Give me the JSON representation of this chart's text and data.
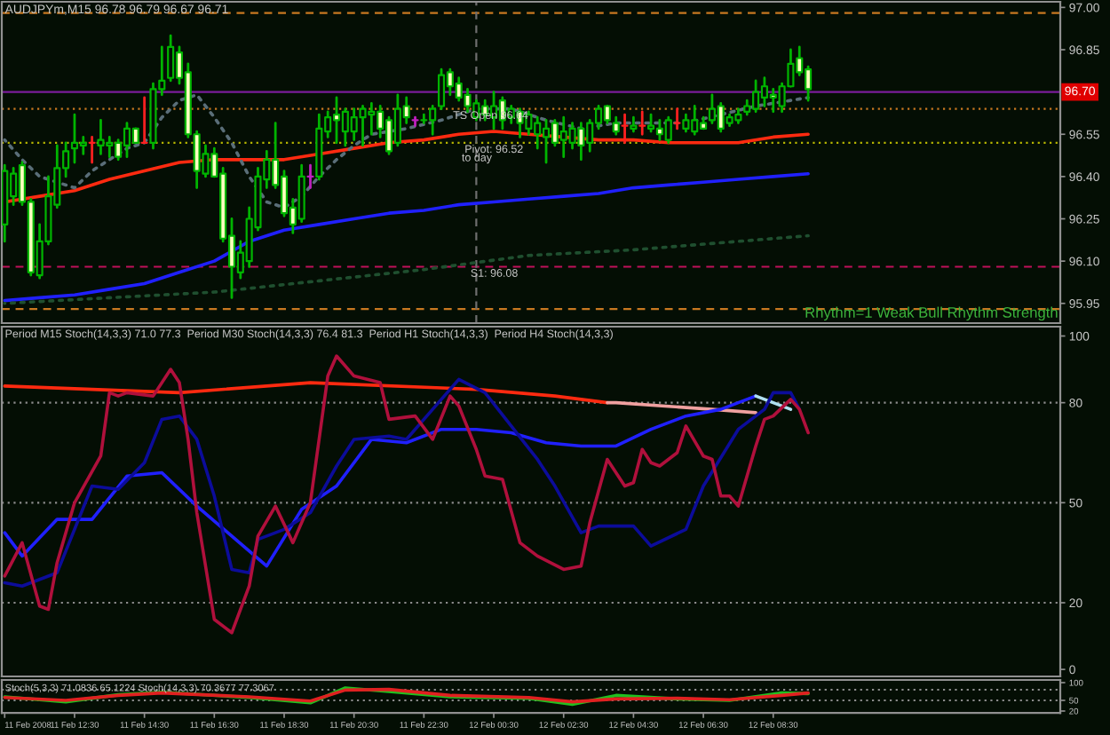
{
  "chart_data": [
    {
      "type": "candlestick",
      "title": "AUDJPYm,M15 96.78 96.79 96.67 96.71",
      "xlim": [
        "2008-02-11T10:25",
        "2008-02-12T16:43"
      ],
      "ylim": [
        95.88,
        97.02
      ],
      "tick_labels": "y",
      "yticks": [
        {
          "value": 97,
          "label": "97.00"
        },
        96.85,
        96.55,
        {
          "value": 96.4,
          "label": "96.40"
        },
        96.25,
        {
          "value": 96.1,
          "label": "96.10"
        },
        95.95
      ],
      "series": [
        {
          "color": "#00b400",
          "x": [
            "2008-02-11T10:30",
            "2008-02-11T10:45",
            "2008-02-11T11:00",
            "2008-02-11T11:15",
            "2008-02-11T11:30",
            "2008-02-11T11:45",
            "2008-02-11T12:00",
            "2008-02-11T12:15",
            "2008-02-11T12:30",
            "2008-02-11T12:45",
            "2008-02-11T13:00",
            "2008-02-11T13:15",
            "2008-02-11T13:30",
            "2008-02-11T13:45",
            "2008-02-11T14:00",
            "2008-02-11T14:15",
            "2008-02-11T14:30",
            "2008-02-11T14:45",
            "2008-02-11T15:00",
            "2008-02-11T15:15",
            "2008-02-11T15:30",
            "2008-02-11T15:45",
            "2008-02-11T16:00",
            "2008-02-11T16:15",
            "2008-02-11T16:30",
            "2008-02-11T16:45",
            "2008-02-11T17:00",
            "2008-02-11T17:15",
            "2008-02-11T17:30",
            "2008-02-11T17:45",
            "2008-02-11T18:00",
            "2008-02-11T18:15",
            "2008-02-11T18:30",
            "2008-02-11T18:45",
            "2008-02-11T19:00",
            "2008-02-11T19:15",
            "2008-02-11T19:30",
            "2008-02-11T19:45",
            "2008-02-11T20:00",
            "2008-02-11T20:15",
            "2008-02-11T20:30",
            "2008-02-11T20:45",
            "2008-02-11T21:00",
            "2008-02-11T21:15",
            "2008-02-11T21:30",
            "2008-02-11T21:45",
            "2008-02-11T22:00",
            "2008-02-11T22:15",
            "2008-02-11T22:30",
            "2008-02-11T22:45",
            "2008-02-11T23:00",
            "2008-02-11T23:15",
            "2008-02-11T23:30",
            "2008-02-11T23:45",
            "2008-02-12T00:00",
            "2008-02-12T00:15",
            "2008-02-12T00:30",
            "2008-02-12T00:45",
            "2008-02-12T01:00",
            "2008-02-12T01:15",
            "2008-02-12T01:30",
            "2008-02-12T01:45",
            "2008-02-12T02:00",
            "2008-02-12T02:15",
            "2008-02-12T02:30",
            "2008-02-12T02:45",
            "2008-02-12T03:00",
            "2008-02-12T03:15",
            "2008-02-12T03:30",
            "2008-02-12T03:45",
            "2008-02-12T04:00",
            "2008-02-12T04:15",
            "2008-02-12T04:30",
            "2008-02-12T04:45",
            "2008-02-12T05:00",
            "2008-02-12T05:15",
            "2008-02-12T05:30",
            "2008-02-12T05:45",
            "2008-02-12T06:00",
            "2008-02-12T06:15",
            "2008-02-12T06:30",
            "2008-02-12T06:45",
            "2008-02-12T07:00",
            "2008-02-12T07:15",
            "2008-02-12T07:30",
            "2008-02-12T07:45",
            "2008-02-12T08:00",
            "2008-02-12T08:15",
            "2008-02-12T08:30",
            "2008-02-12T08:45",
            "2008-02-12T09:00",
            "2008-02-12T09:15",
            "2008-02-12T09:30"
          ],
          "ohlc": [
            [
              96.23,
              96.44,
              96.17,
              96.42
            ],
            [
              96.33,
              96.43,
              96.3,
              96.41
            ],
            [
              96.44,
              96.45,
              96.3,
              96.31
            ],
            [
              96.31,
              96.32,
              96.05,
              96.06
            ],
            [
              96.05,
              96.23,
              96.04,
              96.17
            ],
            [
              96.17,
              96.4,
              96.16,
              96.33
            ],
            [
              96.3,
              96.51,
              96.29,
              96.43
            ],
            [
              96.43,
              96.52,
              96.4,
              96.49
            ],
            [
              96.5,
              96.62,
              96.45,
              96.52
            ],
            [
              96.51,
              96.54,
              96.48,
              96.52
            ],
            [
              96.52,
              96.54,
              96.45,
              96.52
            ],
            [
              96.51,
              96.6,
              96.48,
              96.53
            ],
            [
              96.51,
              96.54,
              96.47,
              96.52
            ],
            [
              96.52,
              96.53,
              96.46,
              96.47
            ],
            [
              96.51,
              96.59,
              96.47,
              96.57
            ],
            [
              96.57,
              96.57,
              96.52,
              96.52
            ],
            [
              96.52,
              96.68,
              96.52,
              96.52
            ],
            [
              96.52,
              96.73,
              96.5,
              96.71
            ],
            [
              96.71,
              96.86,
              96.69,
              96.74
            ],
            [
              96.75,
              96.9,
              96.74,
              96.86
            ],
            [
              96.84,
              96.86,
              96.73,
              96.75
            ],
            [
              96.77,
              96.8,
              96.54,
              96.55
            ],
            [
              96.55,
              96.56,
              96.36,
              96.42
            ],
            [
              96.41,
              96.51,
              96.4,
              96.48
            ],
            [
              96.48,
              96.5,
              96.4,
              96.4
            ],
            [
              96.41,
              96.43,
              96.17,
              96.18
            ],
            [
              96.19,
              96.25,
              95.97,
              96.08
            ],
            [
              96.06,
              96.17,
              96.04,
              96.13
            ],
            [
              96.1,
              96.29,
              96.08,
              96.25
            ],
            [
              96.22,
              96.43,
              96.21,
              96.4
            ],
            [
              96.39,
              96.49,
              96.36,
              96.46
            ],
            [
              96.46,
              96.59,
              96.36,
              96.37
            ],
            [
              96.4,
              96.42,
              96.26,
              96.27
            ],
            [
              96.29,
              96.32,
              96.2,
              96.23
            ],
            [
              96.25,
              96.44,
              96.24,
              96.4
            ],
            [
              96.4,
              96.44,
              96.36,
              96.4
            ],
            [
              96.4,
              96.62,
              96.39,
              96.57
            ],
            [
              96.56,
              96.63,
              96.54,
              96.61
            ],
            [
              96.62,
              96.68,
              96.52,
              96.6
            ],
            [
              96.56,
              96.64,
              96.51,
              96.63
            ],
            [
              96.56,
              96.64,
              96.53,
              96.61
            ],
            [
              96.61,
              96.65,
              96.51,
              96.64
            ],
            [
              96.62,
              96.66,
              96.55,
              96.63
            ],
            [
              96.63,
              96.65,
              96.54,
              96.57
            ],
            [
              96.6,
              96.61,
              96.48,
              96.49
            ],
            [
              96.52,
              96.69,
              96.51,
              96.64
            ],
            [
              96.65,
              96.68,
              96.59,
              96.61
            ],
            [
              96.6,
              96.61,
              96.58,
              96.6
            ],
            [
              96.6,
              96.62,
              96.59,
              96.6
            ],
            [
              96.6,
              96.65,
              96.55,
              96.64
            ],
            [
              96.65,
              96.78,
              96.64,
              96.76
            ],
            [
              96.77,
              96.78,
              96.69,
              96.72
            ],
            [
              96.73,
              96.75,
              96.67,
              96.68
            ],
            [
              96.69,
              96.71,
              96.63,
              96.65
            ],
            [
              96.61,
              96.67,
              96.6,
              96.66
            ],
            [
              96.65,
              96.67,
              96.6,
              96.62
            ],
            [
              96.61,
              96.7,
              96.57,
              96.65
            ],
            [
              96.67,
              96.68,
              96.57,
              96.6
            ],
            [
              96.61,
              96.65,
              96.59,
              96.64
            ],
            [
              96.63,
              96.64,
              96.54,
              96.59
            ],
            [
              96.57,
              96.63,
              96.55,
              96.62
            ],
            [
              96.55,
              96.61,
              96.5,
              96.59
            ],
            [
              96.54,
              96.6,
              96.45,
              96.57
            ],
            [
              96.59,
              96.6,
              96.51,
              96.52
            ],
            [
              96.53,
              96.61,
              96.47,
              96.56
            ],
            [
              96.52,
              96.59,
              96.5,
              96.57
            ],
            [
              96.57,
              96.59,
              96.46,
              96.51
            ],
            [
              96.52,
              96.6,
              96.49,
              96.59
            ],
            [
              96.59,
              96.65,
              96.57,
              96.64
            ],
            [
              96.65,
              96.65,
              96.59,
              96.6
            ],
            [
              96.59,
              96.61,
              96.55,
              96.56
            ],
            [
              96.58,
              96.62,
              96.52,
              96.58
            ],
            [
              96.57,
              96.61,
              96.56,
              96.58
            ],
            [
              96.58,
              96.63,
              96.55,
              96.58
            ],
            [
              96.57,
              96.62,
              96.56,
              96.58
            ],
            [
              96.57,
              96.6,
              96.53,
              96.55
            ],
            [
              96.53,
              96.61,
              96.52,
              96.6
            ],
            [
              96.59,
              96.64,
              96.57,
              96.59
            ],
            [
              96.57,
              96.62,
              96.56,
              96.6
            ],
            [
              96.56,
              96.65,
              96.55,
              96.6
            ],
            [
              96.59,
              96.61,
              96.57,
              96.57
            ],
            [
              96.6,
              96.69,
              96.59,
              96.64
            ],
            [
              96.65,
              96.66,
              96.56,
              96.57
            ],
            [
              96.59,
              96.62,
              96.58,
              96.61
            ],
            [
              96.6,
              96.64,
              96.59,
              96.62
            ],
            [
              96.63,
              96.67,
              96.62,
              96.65
            ],
            [
              96.64,
              96.74,
              96.63,
              96.7
            ],
            [
              96.68,
              96.75,
              96.65,
              96.72
            ],
            [
              96.69,
              96.71,
              96.63,
              96.68
            ],
            [
              96.65,
              96.73,
              96.63,
              96.72
            ],
            [
              96.72,
              96.85,
              96.72,
              96.8
            ],
            [
              96.82,
              96.86,
              96.76,
              96.77
            ],
            [
              96.78,
              96.79,
              96.67,
              96.71
            ]
          ],
          "colors": [
            "#040e04",
            "#040e04",
            "#ffffc0",
            "#ffffc0",
            "#040e04",
            "#040e04",
            "#040e04",
            "#040e04",
            "#040e04",
            "#040e04",
            "#ff2020",
            "#040e04",
            "#040e04",
            "#ffffc0",
            "#040e04",
            "#ffffc0",
            "#ff2020",
            "#040e04",
            "#040e04",
            "#040e04",
            "#ffffc0",
            "#ffffc0",
            "#ffffc0",
            "#040e04",
            "#ffffc0",
            "#ffffc0",
            "#ffffc0",
            "#040e04",
            "#040e04",
            "#040e04",
            "#040e04",
            "#ffffc0",
            "#ffffc0",
            "#ffffc0",
            "#040e04",
            "#c020c0",
            "#040e04",
            "#040e04",
            "#ffffc0",
            "#040e04",
            "#040e04",
            "#040e04",
            "#040e04",
            "#ffffc0",
            "#ffffc0",
            "#040e04",
            "#ffffc0",
            "#c020c0",
            "#00b400",
            "#040e04",
            "#040e04",
            "#ffffc0",
            "#ffffc0",
            "#ffffc0",
            "#040e04",
            "#ffffc0",
            "#040e04",
            "#ffffc0",
            "#040e04",
            "#ffffc0",
            "#040e04",
            "#040e04",
            "#040e04",
            "#ffffc0",
            "#040e04",
            "#040e04",
            "#ffffc0",
            "#040e04",
            "#040e04",
            "#ffffc0",
            "#ffffc0",
            "#ff2020",
            "#040e04",
            "#ff2020",
            "#040e04",
            "#ffffc0",
            "#040e04",
            "#ff2020",
            "#040e04",
            "#040e04",
            "#ffffc0",
            "#040e04",
            "#ffffc0",
            "#040e04",
            "#040e04",
            "#040e04",
            "#040e04",
            "#040e04",
            "#ffffc0",
            "#040e04",
            "#040e04",
            "#ffffc0",
            "#ffffc0"
          ]
        },
        {
          "type": "line",
          "color": "#ff2a10",
          "x": [
            "2008-02-11T10:30",
            "2008-02-11T11:30",
            "2008-02-11T12:30",
            "2008-02-11T13:30",
            "2008-02-11T14:30",
            "2008-02-11T15:30",
            "2008-02-11T16:30",
            "2008-02-11T17:30",
            "2008-02-11T18:30",
            "2008-02-11T19:30",
            "2008-02-11T20:30",
            "2008-02-11T21:30",
            "2008-02-11T22:30",
            "2008-02-11T23:30",
            "2008-02-12T00:30",
            "2008-02-12T01:30",
            "2008-02-12T02:30",
            "2008-02-12T03:30",
            "2008-02-12T04:30",
            "2008-02-12T05:30",
            "2008-02-12T06:30",
            "2008-02-12T07:30",
            "2008-02-12T08:30",
            "2008-02-12T09:30"
          ],
          "values": [
            96.31,
            96.33,
            96.35,
            96.39,
            96.42,
            96.45,
            96.46,
            96.46,
            96.46,
            96.48,
            96.5,
            96.52,
            96.53,
            96.55,
            96.56,
            96.55,
            96.54,
            96.53,
            96.53,
            96.52,
            96.52,
            96.52,
            96.54,
            96.55
          ]
        },
        {
          "type": "line",
          "color": "#2020ff",
          "x": [
            "2008-02-11T10:30",
            "2008-02-11T11:30",
            "2008-02-11T12:30",
            "2008-02-11T13:30",
            "2008-02-11T14:30",
            "2008-02-11T15:30",
            "2008-02-11T16:30",
            "2008-02-11T17:30",
            "2008-02-11T18:30",
            "2008-02-11T19:30",
            "2008-02-11T20:30",
            "2008-02-11T21:30",
            "2008-02-11T22:30",
            "2008-02-11T23:30",
            "2008-02-12T00:30",
            "2008-02-12T01:30",
            "2008-02-12T02:30",
            "2008-02-12T03:30",
            "2008-02-12T04:30",
            "2008-02-12T05:30",
            "2008-02-12T06:30",
            "2008-02-12T07:30",
            "2008-02-12T08:30",
            "2008-02-12T09:30"
          ],
          "values": [
            95.96,
            95.97,
            95.98,
            96.0,
            96.02,
            96.06,
            96.1,
            96.17,
            96.21,
            96.23,
            96.25,
            96.27,
            96.28,
            96.3,
            96.31,
            96.32,
            96.33,
            96.34,
            96.36,
            96.37,
            96.38,
            96.39,
            96.4,
            96.41
          ]
        },
        {
          "type": "line",
          "color": "#1f4f2f",
          "line_style": "dotted",
          "x": [
            "2008-02-11T10:30",
            "2008-02-11T13:30",
            "2008-02-11T16:30",
            "2008-02-11T19:30",
            "2008-02-11T22:30",
            "2008-02-12T01:30",
            "2008-02-12T04:30",
            "2008-02-12T07:30",
            "2008-02-12T09:30"
          ],
          "values": [
            95.95,
            95.97,
            95.99,
            96.03,
            96.07,
            96.12,
            96.14,
            96.17,
            96.19
          ]
        },
        {
          "type": "line",
          "color": "#5a6e78",
          "line_style": "dotted",
          "x": [
            "2008-02-11T10:30",
            "2008-02-11T11:00",
            "2008-02-11T11:30",
            "2008-02-11T12:30",
            "2008-02-11T13:00",
            "2008-02-11T14:00",
            "2008-02-11T14:30",
            "2008-02-11T15:00",
            "2008-02-11T15:30",
            "2008-02-11T16:00",
            "2008-02-11T16:30",
            "2008-02-11T17:00",
            "2008-02-11T17:30",
            "2008-02-11T18:00",
            "2008-02-11T18:30",
            "2008-02-11T19:00",
            "2008-02-11T19:30",
            "2008-02-11T20:00",
            "2008-02-11T20:30",
            "2008-02-11T21:00",
            "2008-02-11T22:00",
            "2008-02-11T23:00",
            "2008-02-12T00:00",
            "2008-02-12T01:00",
            "2008-02-12T02:00",
            "2008-02-12T03:00",
            "2008-02-12T04:00",
            "2008-02-12T05:00",
            "2008-02-12T06:00",
            "2008-02-12T07:00",
            "2008-02-12T08:00",
            "2008-02-12T09:00",
            "2008-02-12T09:30"
          ],
          "values": [
            96.53,
            96.46,
            96.4,
            96.36,
            96.42,
            96.5,
            96.52,
            96.61,
            96.67,
            96.69,
            96.61,
            96.52,
            96.4,
            96.31,
            96.29,
            96.33,
            96.4,
            96.46,
            96.51,
            96.55,
            96.57,
            96.6,
            96.64,
            96.64,
            96.6,
            96.57,
            96.59,
            96.59,
            96.59,
            96.62,
            96.65,
            96.67,
            96.68
          ]
        }
      ],
      "ref_lines": [
        {
          "axis": "y",
          "value": 96.98,
          "color": "#c87820",
          "line_style": "dashed"
        },
        {
          "axis": "y",
          "value": 96.7,
          "label": "96.70",
          "color": "#7a1c9a"
        },
        {
          "axis": "y",
          "value": 96.64,
          "color": "#c87820",
          "line_style": "dotted"
        },
        {
          "axis": "y",
          "value": 96.52,
          "color": "#b4b400",
          "line_style": "dotted"
        },
        {
          "axis": "y",
          "value": 96.08,
          "color": "#c0105a",
          "line_style": "dashed"
        },
        {
          "axis": "y",
          "value": 95.93,
          "color": "#c87820",
          "line_style": "dashed"
        },
        {
          "axis": "x",
          "value": "2008-02-12T00:00",
          "color": "#6e6e6e",
          "line_style": "dashed"
        }
      ],
      "annotations": [
        {
          "text": "TS Open 96.64",
          "x": "2008-02-11T23:20",
          "y": 96.64
        },
        {
          "text": "Pivot: 96.52",
          "x": "2008-02-11T23:40",
          "y": 96.52
        },
        {
          "text": "to day",
          "x": "2008-02-11T23:35",
          "y": 96.49
        },
        {
          "text": "S1: 96.08",
          "x": "2008-02-11T23:50",
          "y": 96.08
        },
        "Rhythm=1 Weak Bull Rhythm Strength"
      ]
    },
    {
      "type": "line",
      "title": "Period M15 Stoch(14,3,3) 71.0 77.3  Period M30 Stoch(14,3,3) 76.4 81.3  Period H1 Stoch(14,3,3)  Period H4 Stoch(14,3,3)",
      "xlim": [
        "2008-02-11T10:25",
        "2008-02-12T16:43"
      ],
      "ylim": [
        -2.1,
        102.8
      ],
      "tick_labels": "y",
      "yticks": [
        0,
        20,
        50,
        80,
        100
      ],
      "ref_lines": [
        {
          "axis": "y",
          "value": 80,
          "color": "#8c8c8c",
          "line_style": "dotted"
        },
        {
          "axis": "y",
          "value": 50,
          "color": "#8c8c8c",
          "line_style": "dotted"
        },
        {
          "axis": "y",
          "value": 20,
          "color": "#8c8c8c",
          "line_style": "dotted"
        }
      ],
      "series": [
        {
          "color": "#ff2a10",
          "x": [
            "2008-02-11T10:30",
            "2008-02-11T15:30",
            "2008-02-11T19:15",
            "2008-02-12T00:00",
            "2008-02-12T02:15",
            "2008-02-12T03:45"
          ],
          "values": [
            85,
            83,
            86,
            84,
            82,
            80
          ]
        },
        {
          "color": "#f0a0a0",
          "x": [
            "2008-02-12T03:45",
            "2008-02-12T04:00",
            "2008-02-12T06:45",
            "2008-02-12T08:00"
          ],
          "values": [
            80,
            80,
            78,
            77
          ]
        },
        {
          "color": "#2020ff",
          "x": [
            "2008-02-11T10:30",
            "2008-02-11T11:00",
            "2008-02-11T12:00",
            "2008-02-11T13:00",
            "2008-02-11T14:00",
            "2008-02-11T15:00",
            "2008-02-11T16:00",
            "2008-02-11T17:00",
            "2008-02-11T18:00",
            "2008-02-11T19:00",
            "2008-02-11T20:00",
            "2008-02-11T21:00",
            "2008-02-11T22:00",
            "2008-02-11T23:00",
            "2008-02-12T00:00",
            "2008-02-12T01:00",
            "2008-02-12T02:00",
            "2008-02-12T03:00",
            "2008-02-12T04:00",
            "2008-02-12T05:00",
            "2008-02-12T06:00",
            "2008-02-12T07:00",
            "2008-02-12T08:00"
          ],
          "values": [
            41,
            34,
            45,
            45,
            58,
            59,
            49,
            40,
            31,
            48,
            55,
            69,
            68,
            72,
            72,
            71,
            68,
            67,
            67,
            72,
            76,
            78,
            82
          ]
        },
        {
          "color": "#b0e0f0",
          "x": [
            "2008-02-12T08:00",
            "2008-02-12T09:00"
          ],
          "values": [
            82,
            78
          ]
        },
        {
          "color": "#0c0c9a",
          "x": [
            "2008-02-11T10:30",
            "2008-02-11T11:00",
            "2008-02-11T12:00",
            "2008-02-11T13:00",
            "2008-02-11T13:45",
            "2008-02-11T14:30",
            "2008-02-11T15:00",
            "2008-02-11T15:30",
            "2008-02-11T16:00",
            "2008-02-11T16:30",
            "2008-02-11T17:00",
            "2008-02-11T17:30",
            "2008-02-11T17:45",
            "2008-02-11T18:30",
            "2008-02-11T19:15",
            "2008-02-11T20:00",
            "2008-02-11T20:30",
            "2008-02-11T21:30",
            "2008-02-11T22:00",
            "2008-02-11T22:45",
            "2008-02-11T23:30",
            "2008-02-12T00:15",
            "2008-02-12T01:00",
            "2008-02-12T01:45",
            "2008-02-12T02:15",
            "2008-02-12T03:00",
            "2008-02-12T03:30",
            "2008-02-12T04:30",
            "2008-02-12T05:00",
            "2008-02-12T06:00",
            "2008-02-12T06:30",
            "2008-02-12T07:30",
            "2008-02-12T08:15",
            "2008-02-12T08:30",
            "2008-02-12T09:00",
            "2008-02-12T09:15"
          ],
          "values": [
            26,
            25,
            29,
            55,
            54,
            62,
            75,
            76,
            69,
            52,
            30,
            29,
            39,
            42,
            47,
            61,
            69,
            70,
            69,
            78,
            87,
            83,
            73,
            63,
            55,
            41,
            43,
            43,
            37,
            42,
            55,
            72,
            78,
            83,
            83,
            78
          ]
        },
        {
          "color": "#b0103c",
          "x": [
            "2008-02-11T10:30",
            "2008-02-11T11:00",
            "2008-02-11T11:30",
            "2008-02-11T11:45",
            "2008-02-11T12:00",
            "2008-02-11T12:30",
            "2008-02-11T13:15",
            "2008-02-11T13:30",
            "2008-02-11T13:45",
            "2008-02-11T14:00",
            "2008-02-11T14:45",
            "2008-02-11T15:15",
            "2008-02-11T15:30",
            "2008-02-11T15:45",
            "2008-02-11T16:00",
            "2008-02-11T16:30",
            "2008-02-11T17:00",
            "2008-02-11T17:30",
            "2008-02-11T17:45",
            "2008-02-11T18:15",
            "2008-02-11T18:45",
            "2008-02-11T19:15",
            "2008-02-11T19:45",
            "2008-02-11T20:00",
            "2008-02-11T20:30",
            "2008-02-11T21:15",
            "2008-02-11T21:30",
            "2008-02-11T22:15",
            "2008-02-11T22:45",
            "2008-02-11T23:15",
            "2008-02-11T23:30",
            "2008-02-12T00:00",
            "2008-02-12T00:15",
            "2008-02-12T00:45",
            "2008-02-12T01:15",
            "2008-02-12T01:45",
            "2008-02-12T02:30",
            "2008-02-12T03:00",
            "2008-02-12T03:15",
            "2008-02-12T03:45",
            "2008-02-12T04:15",
            "2008-02-12T04:30",
            "2008-02-12T04:45",
            "2008-02-12T05:00",
            "2008-02-12T05:15",
            "2008-02-12T05:45",
            "2008-02-12T06:00",
            "2008-02-12T06:30",
            "2008-02-12T06:45",
            "2008-02-12T07:00",
            "2008-02-12T07:15",
            "2008-02-12T07:30",
            "2008-02-12T08:00",
            "2008-02-12T08:15",
            "2008-02-12T08:30",
            "2008-02-12T09:00",
            "2008-02-12T09:15",
            "2008-02-12T09:30"
          ],
          "values": [
            28,
            38,
            19,
            18,
            32,
            50,
            64,
            83,
            82,
            83,
            82,
            90,
            86,
            69,
            47,
            15,
            11,
            25,
            40,
            49,
            38,
            50,
            88,
            94,
            88,
            86,
            75,
            76,
            69,
            82,
            79,
            66,
            58,
            57,
            38,
            34,
            30,
            31,
            44,
            63,
            55,
            56,
            66,
            62,
            61,
            65,
            73,
            64,
            63,
            52,
            52,
            49,
            67,
            75,
            76,
            81,
            78,
            71
          ]
        }
      ]
    },
    {
      "type": "line",
      "title": "Stoch(5,3,3) 71.0836 65.1224 Stoch(14,3,3) 70.3677 77.3067",
      "xlim": [
        "2008-02-11T10:25",
        "2008-02-12T16:43"
      ],
      "ylim": [
        14.5,
        107.5
      ],
      "yticks": [
        20,
        50,
        100
      ],
      "xticks": [
        {
          "value": "2008-02-11T10:30",
          "label": "11 Feb 2008"
        },
        {
          "value": "2008-02-11T12:30",
          "label": "11 Feb 12:30"
        },
        {
          "value": "2008-02-11T14:30",
          "label": "11 Feb 14:30"
        },
        {
          "value": "2008-02-11T16:30",
          "label": "11 Feb 16:30"
        },
        {
          "value": "2008-02-11T18:30",
          "label": "11 Feb 18:30"
        },
        {
          "value": "2008-02-11T20:30",
          "label": "11 Feb 20:30"
        },
        {
          "value": "2008-02-11T22:30",
          "label": "11 Feb 22:30"
        },
        {
          "value": "2008-02-12T00:30",
          "label": "12 Feb 00:30"
        },
        {
          "value": "2008-02-12T02:30",
          "label": "12 Feb 02:30"
        },
        {
          "value": "2008-02-12T04:30",
          "label": "12 Feb 04:30"
        },
        {
          "value": "2008-02-12T06:30",
          "label": "12 Feb 06:30"
        },
        {
          "value": "2008-02-12T08:30",
          "label": "12 Feb 08:30"
        }
      ],
      "ref_lines": [
        {
          "axis": "y",
          "value": 80,
          "color": "#8c8c8c",
          "line_style": "dotted"
        },
        {
          "axis": "y",
          "value": 50,
          "color": "#8c8c8c",
          "line_style": "dotted"
        }
      ],
      "series": [
        {
          "color": "#20c020",
          "x": [
            "2008-02-11T10:30",
            "2008-02-11T12:15",
            "2008-02-11T13:45",
            "2008-02-11T15:00",
            "2008-02-11T17:30",
            "2008-02-11T19:15",
            "2008-02-11T20:15",
            "2008-02-11T21:30",
            "2008-02-11T23:15",
            "2008-02-12T01:30",
            "2008-02-12T02:45",
            "2008-02-12T04:00",
            "2008-02-12T05:45",
            "2008-02-12T07:15",
            "2008-02-12T08:45",
            "2008-02-12T09:30"
          ],
          "values": [
            60,
            46,
            66,
            73,
            58,
            43,
            85,
            75,
            60,
            56,
            39,
            64,
            54,
            50,
            71,
            69
          ]
        },
        {
          "color": "#e02020",
          "x": [
            "2008-02-11T10:30",
            "2008-02-11T12:15",
            "2008-02-11T13:45",
            "2008-02-11T15:00",
            "2008-02-11T17:30",
            "2008-02-11T19:15",
            "2008-02-11T20:15",
            "2008-02-11T21:30",
            "2008-02-11T23:15",
            "2008-02-12T01:30",
            "2008-02-12T02:45",
            "2008-02-12T04:00",
            "2008-02-12T05:45",
            "2008-02-12T07:15",
            "2008-02-12T08:45",
            "2008-02-12T09:30"
          ],
          "values": [
            58,
            50,
            64,
            71,
            60,
            48,
            79,
            81,
            64,
            58,
            46,
            54,
            56,
            52,
            64,
            71
          ]
        }
      ]
    }
  ]
}
